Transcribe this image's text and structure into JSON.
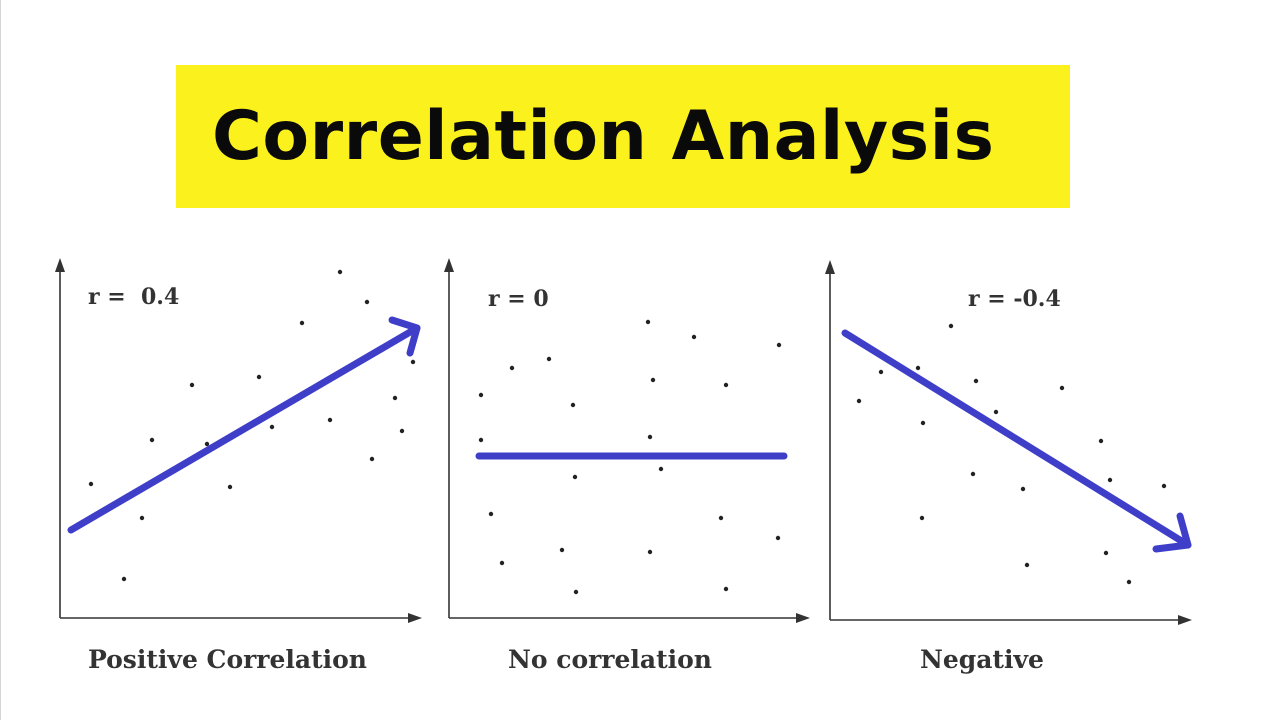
{
  "title": "Correlation Analysis",
  "colors": {
    "banner": "#fbf11d",
    "trend_line": "#3f3ec9"
  },
  "panels": [
    {
      "id": "positive",
      "r_label": "r =  0.4",
      "caption": "Positive Correlation",
      "trend": "increasing"
    },
    {
      "id": "none",
      "r_label": "r = 0",
      "caption": "No correlation",
      "trend": "flat"
    },
    {
      "id": "negative",
      "r_label": "r = -0.4",
      "caption": "Negative",
      "trend": "decreasing"
    }
  ]
}
